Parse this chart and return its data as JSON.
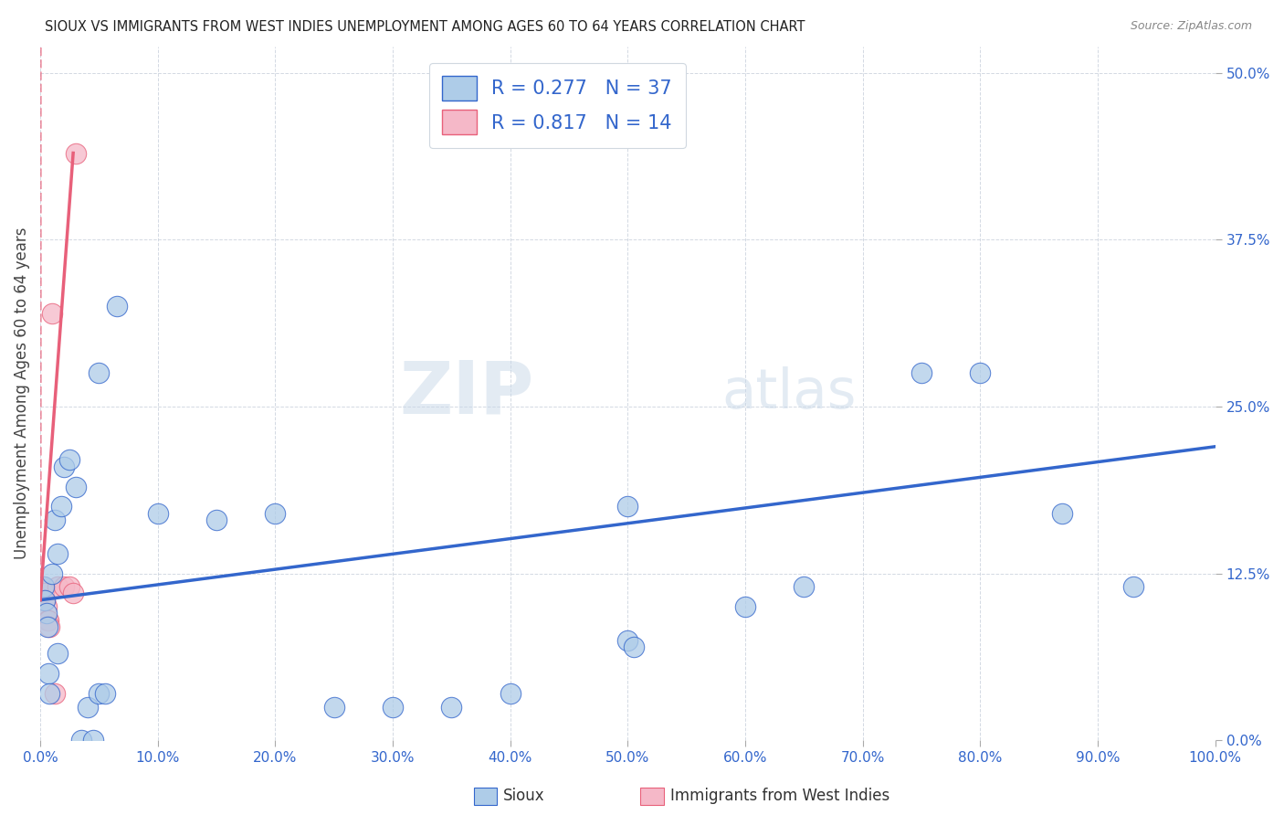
{
  "title": "SIOUX VS IMMIGRANTS FROM WEST INDIES UNEMPLOYMENT AMONG AGES 60 TO 64 YEARS CORRELATION CHART",
  "source": "Source: ZipAtlas.com",
  "ylabel": "Unemployment Among Ages 60 to 64 years",
  "sioux_R": 0.277,
  "sioux_N": 37,
  "wi_R": 0.817,
  "wi_N": 14,
  "sioux_color": "#aecce8",
  "wi_color": "#f5b8c8",
  "sioux_line_color": "#3366cc",
  "wi_line_color": "#e8607a",
  "background_color": "#ffffff",
  "watermark_zip": "ZIP",
  "watermark_atlas": "atlas",
  "legend_labels": [
    "Sioux",
    "Immigrants from West Indies"
  ],
  "xlim": [
    0,
    100
  ],
  "ylim": [
    0,
    52
  ],
  "xticks": [
    0,
    10,
    20,
    30,
    40,
    50,
    60,
    70,
    80,
    90,
    100
  ],
  "yticks": [
    0,
    12.5,
    25.0,
    37.5,
    50.0
  ],
  "sioux_x": [
    0.3,
    0.4,
    0.5,
    0.6,
    0.7,
    0.8,
    1.0,
    1.2,
    1.5,
    1.5,
    1.8,
    2.0,
    2.5,
    3.0,
    3.5,
    4.0,
    4.5,
    5.0,
    5.0,
    5.5,
    6.5,
    10.0,
    15.0,
    20.0,
    25.0,
    30.0,
    35.0,
    40.0,
    50.0,
    50.0,
    50.5,
    60.0,
    65.0,
    75.0,
    80.0,
    87.0,
    93.0
  ],
  "sioux_y": [
    11.5,
    10.5,
    9.5,
    8.5,
    5.0,
    3.5,
    12.5,
    16.5,
    14.0,
    6.5,
    17.5,
    20.5,
    21.0,
    19.0,
    0.0,
    2.5,
    0.0,
    3.5,
    27.5,
    3.5,
    32.5,
    17.0,
    16.5,
    17.0,
    2.5,
    2.5,
    2.5,
    3.5,
    7.5,
    17.5,
    7.0,
    10.0,
    11.5,
    27.5,
    27.5,
    17.0,
    11.5
  ],
  "wi_x": [
    0.2,
    0.3,
    0.4,
    0.5,
    0.6,
    0.7,
    0.8,
    1.0,
    1.2,
    1.5,
    2.0,
    2.5,
    2.8,
    3.0
  ],
  "wi_y": [
    11.5,
    11.0,
    10.5,
    10.0,
    9.0,
    9.0,
    8.5,
    32.0,
    3.5,
    11.5,
    11.5,
    11.5,
    11.0,
    44.0
  ],
  "blue_line_x0": 0,
  "blue_line_y0": 10.5,
  "blue_line_x1": 100,
  "blue_line_y1": 22.0,
  "pink_line_x0": 0.0,
  "pink_line_y0": 10.5,
  "pink_line_x1": 2.8,
  "pink_line_y1": 44.0,
  "pink_dash_x0": 0.0,
  "pink_dash_y0": 10.5,
  "pink_dash_x1": 0.0,
  "pink_dash_y1": 52.0
}
